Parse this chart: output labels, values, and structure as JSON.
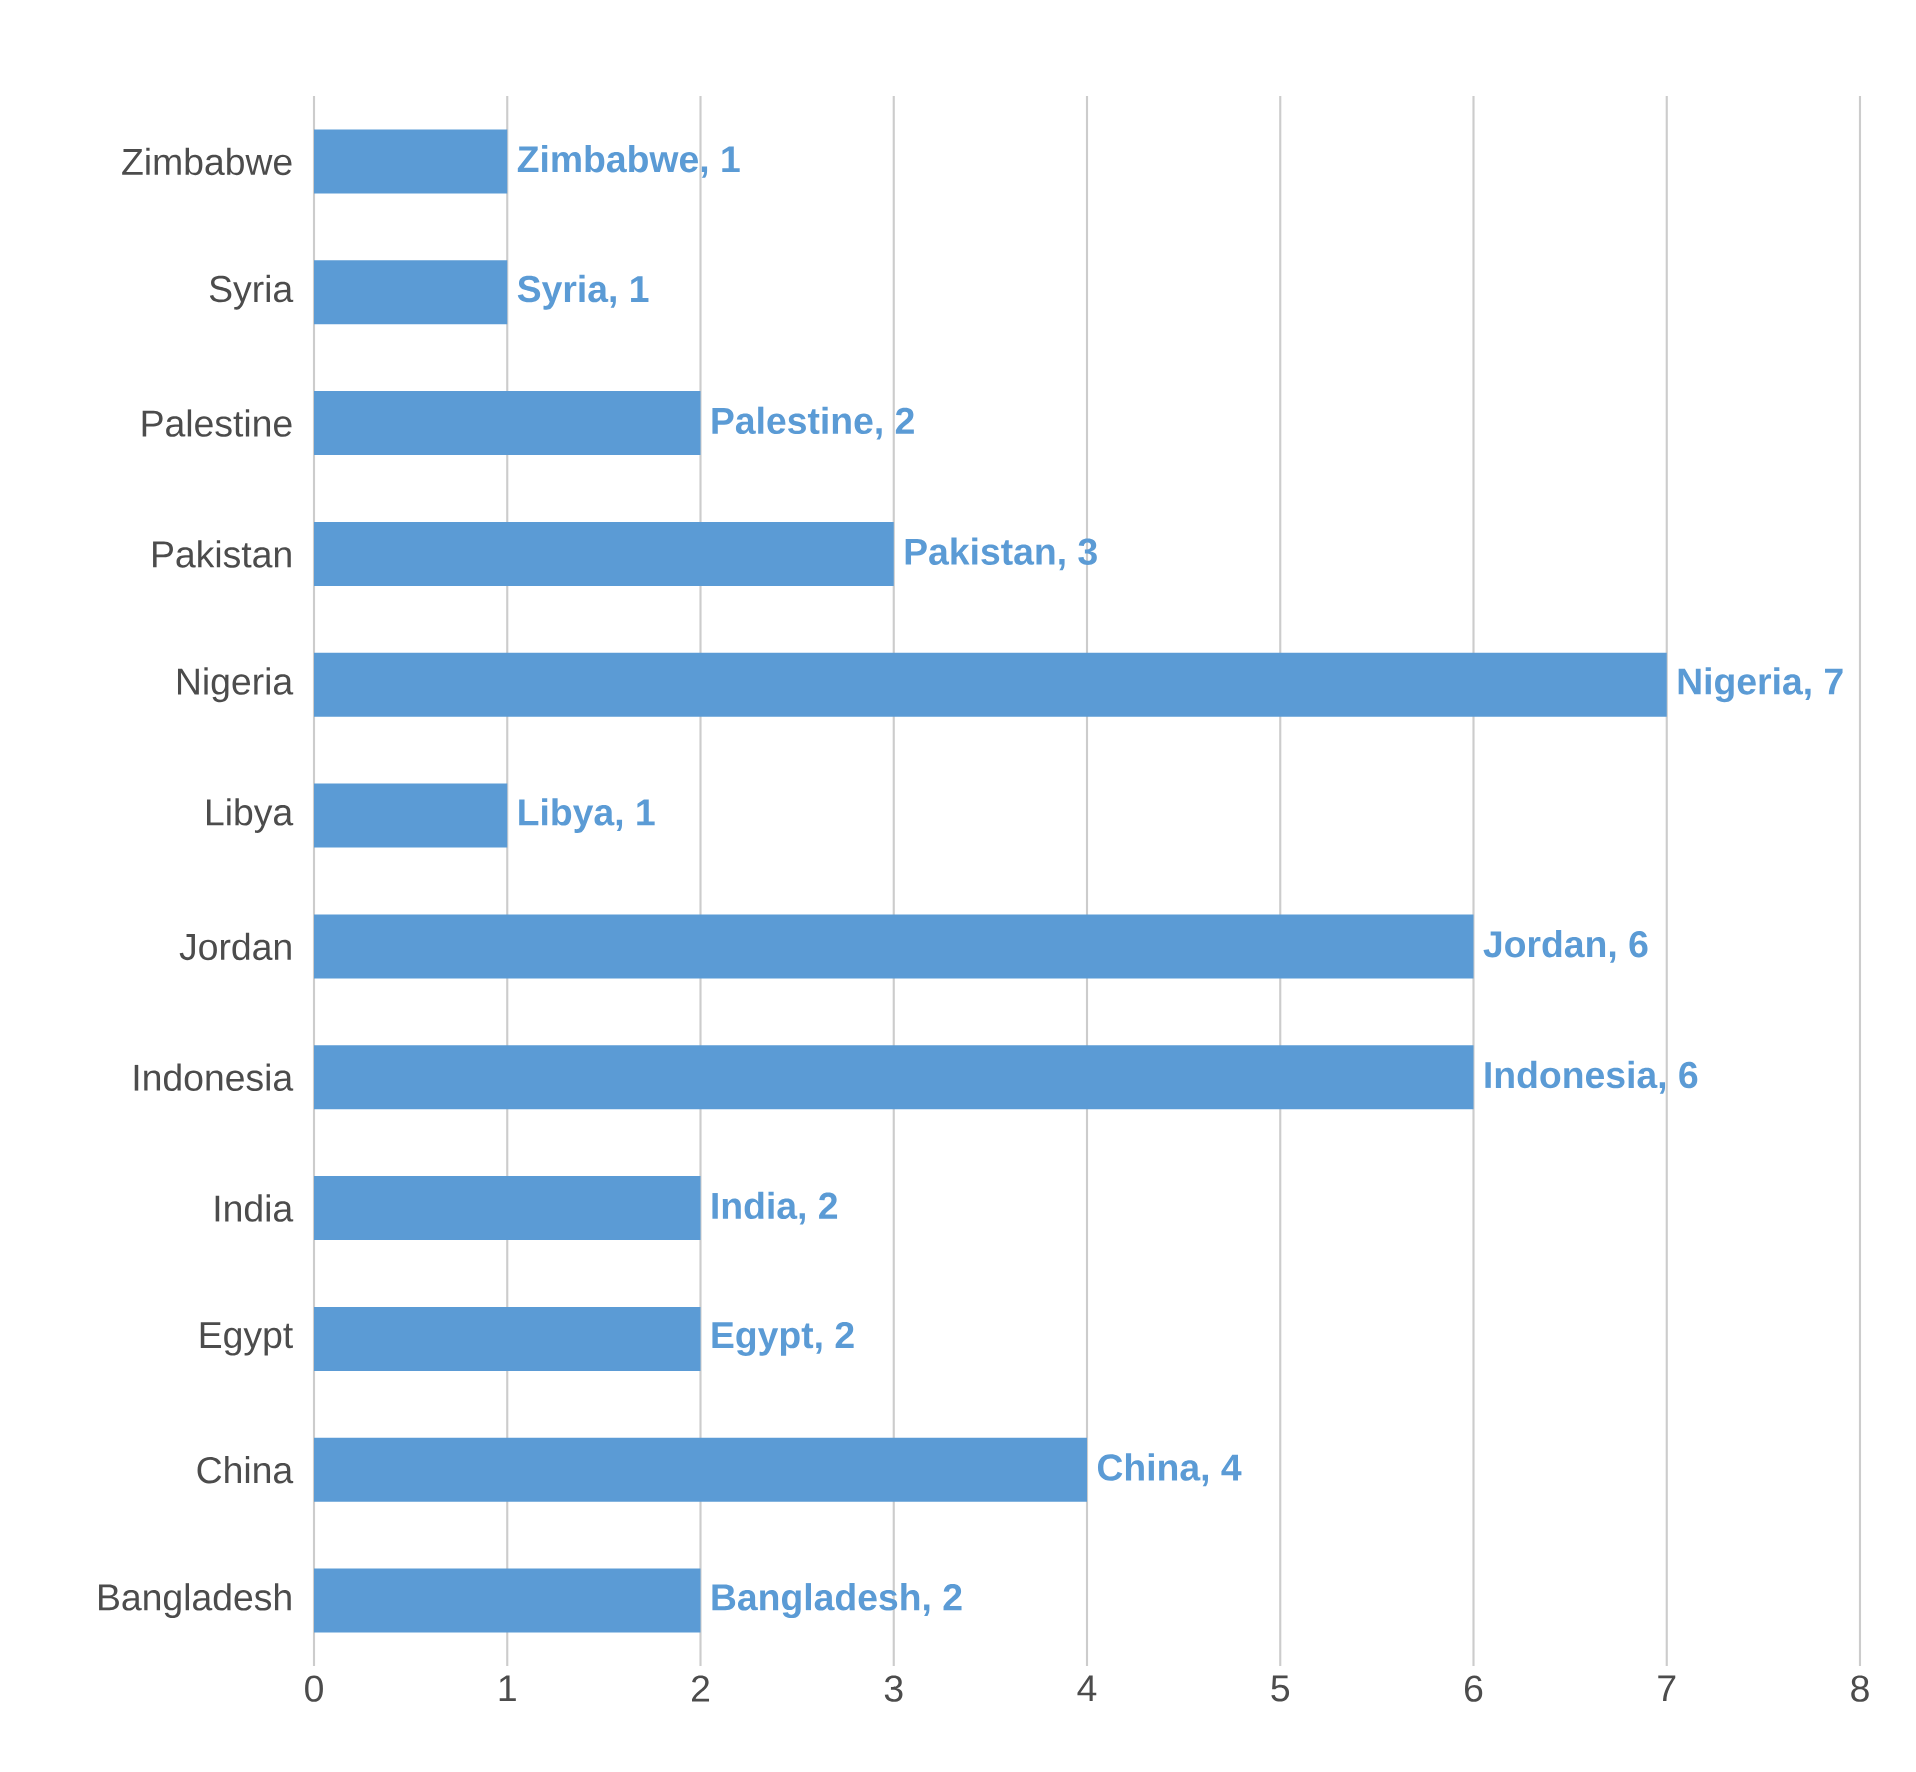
{
  "chart_data": {
    "type": "bar",
    "orientation": "horizontal",
    "categories": [
      "Zimbabwe",
      "Syria",
      "Palestine",
      "Pakistan",
      "Nigeria",
      "Libya",
      "Jordan",
      "Indonesia",
      "India",
      "Egypt",
      "China",
      "Bangladesh"
    ],
    "values": [
      1,
      1,
      2,
      3,
      7,
      1,
      6,
      6,
      2,
      2,
      4,
      2
    ],
    "value_labels": [
      "Zimbabwe, 1",
      "Syria, 1",
      "Palestine, 2",
      "Pakistan, 3",
      "Nigeria, 7",
      "Libya, 1",
      "Jordan, 6",
      "Indonesia, 6",
      "India, 2",
      "Egypt, 2",
      "China, 4",
      "Bangladesh, 2"
    ],
    "color": "#5b9bd5",
    "xlim": [
      0,
      8
    ],
    "xticks": [
      0,
      1,
      2,
      3,
      4,
      5,
      6,
      7,
      8
    ],
    "grid": "x"
  }
}
